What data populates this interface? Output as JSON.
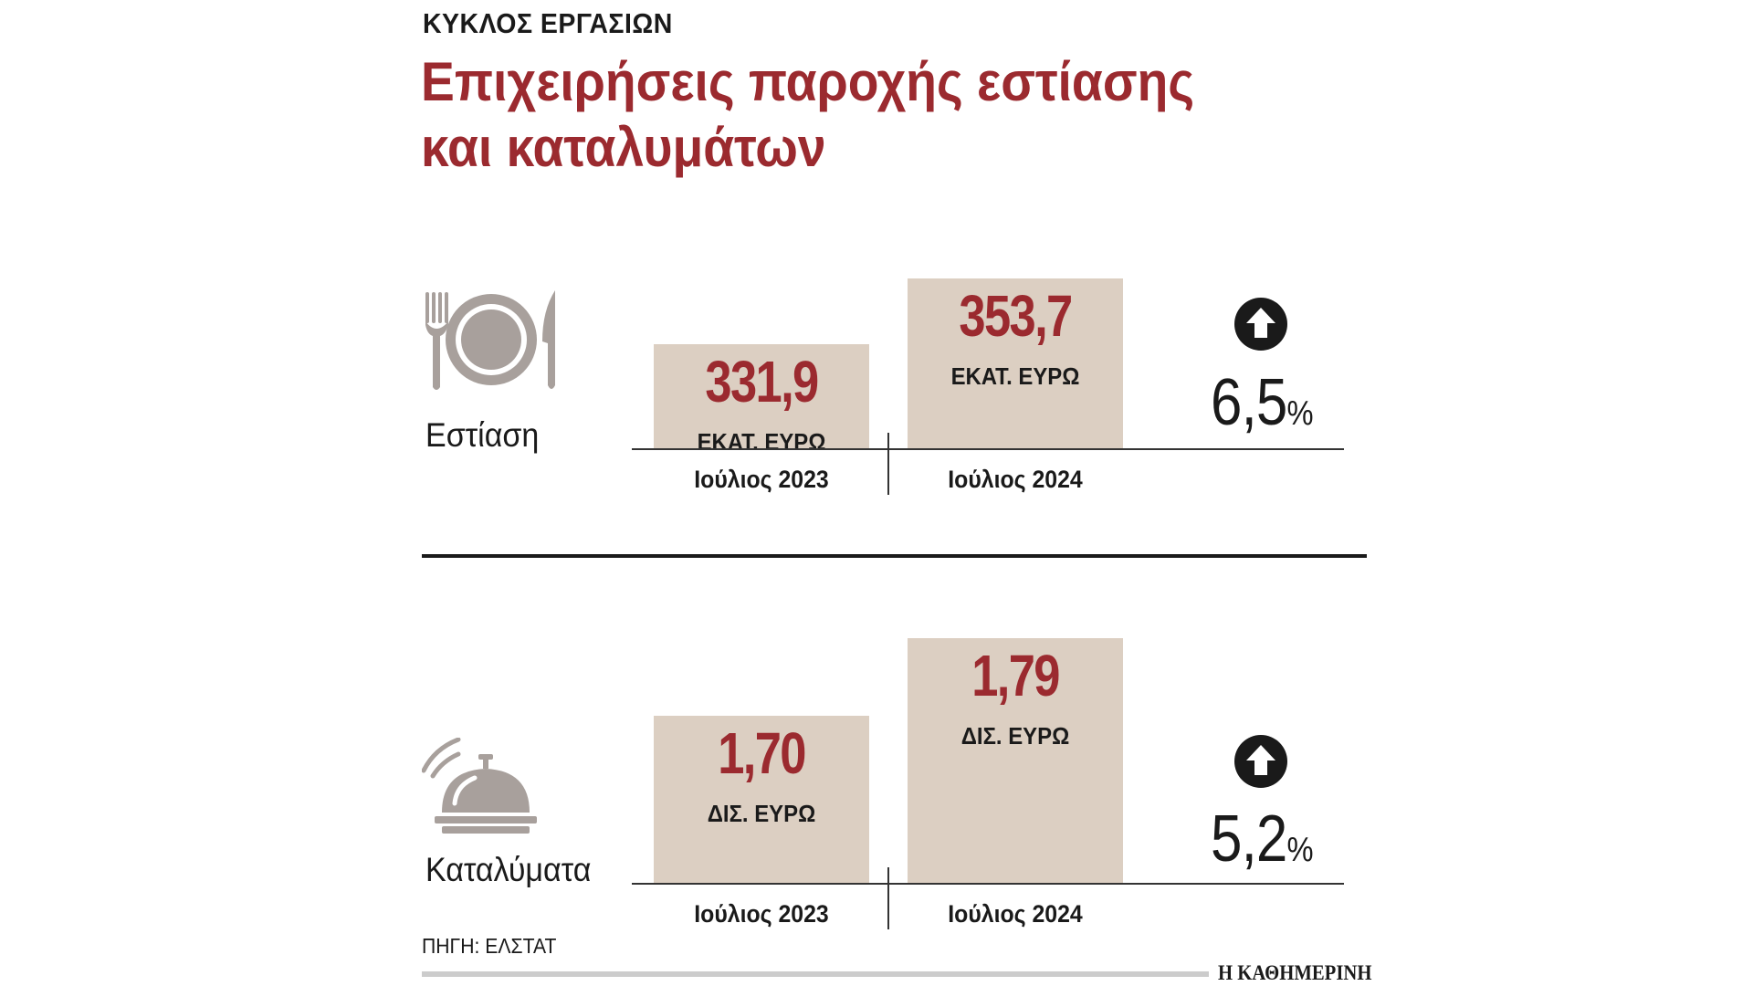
{
  "kicker": "ΚΥΚΛΟΣ ΕΡΓΑΣΙΩΝ",
  "title_line1": "Επιχειρήσεις παροχής εστίασης",
  "title_line2": "και καταλυμάτων",
  "source": "ΠΗΓΗ: ΕΛΣΤΑΤ",
  "brand": "Η ΚΑΘΗΜΕΡΙΝΗ",
  "colors": {
    "accent": "#9b2a2f",
    "bar": "#dccfc2",
    "icon": "#a8a09c",
    "text": "#1a1a1a"
  },
  "sections": [
    {
      "label": "Εστίαση",
      "icon": "plate-fork-knife-icon",
      "change": "6,5",
      "change_unit": "%",
      "change_direction": "up",
      "bars": [
        {
          "period": "Ιούλιος 2023",
          "value_label": "331,9",
          "unit": "ΕΚΑΤ. ΕΥΡΩ"
        },
        {
          "period": "Ιούλιος 2024",
          "value_label": "353,7",
          "unit": "ΕΚΑΤ. ΕΥΡΩ"
        }
      ]
    },
    {
      "label": "Καταλύματα",
      "icon": "reception-bell-icon",
      "change": "5,2",
      "change_unit": "%",
      "change_direction": "up",
      "bars": [
        {
          "period": "Ιούλιος 2023",
          "value_label": "1,70",
          "unit": "ΔΙΣ. ΕΥΡΩ"
        },
        {
          "period": "Ιούλιος 2024",
          "value_label": "1,79",
          "unit": "ΔΙΣ. ΕΥΡΩ"
        }
      ]
    }
  ],
  "chart_data": [
    {
      "type": "bar",
      "categories": [
        "Ιούλιος 2023",
        "Ιούλιος 2024"
      ],
      "values": [
        331.9,
        353.7
      ],
      "title": "Εστίαση",
      "ylabel": "ΕΚΑΤ. ΕΥΡΩ",
      "change_percent": 6.5
    },
    {
      "type": "bar",
      "categories": [
        "Ιούλιος 2023",
        "Ιούλιος 2024"
      ],
      "values": [
        1.7,
        1.79
      ],
      "title": "Καταλύματα",
      "ylabel": "ΔΙΣ. ΕΥΡΩ",
      "change_percent": 5.2
    }
  ]
}
